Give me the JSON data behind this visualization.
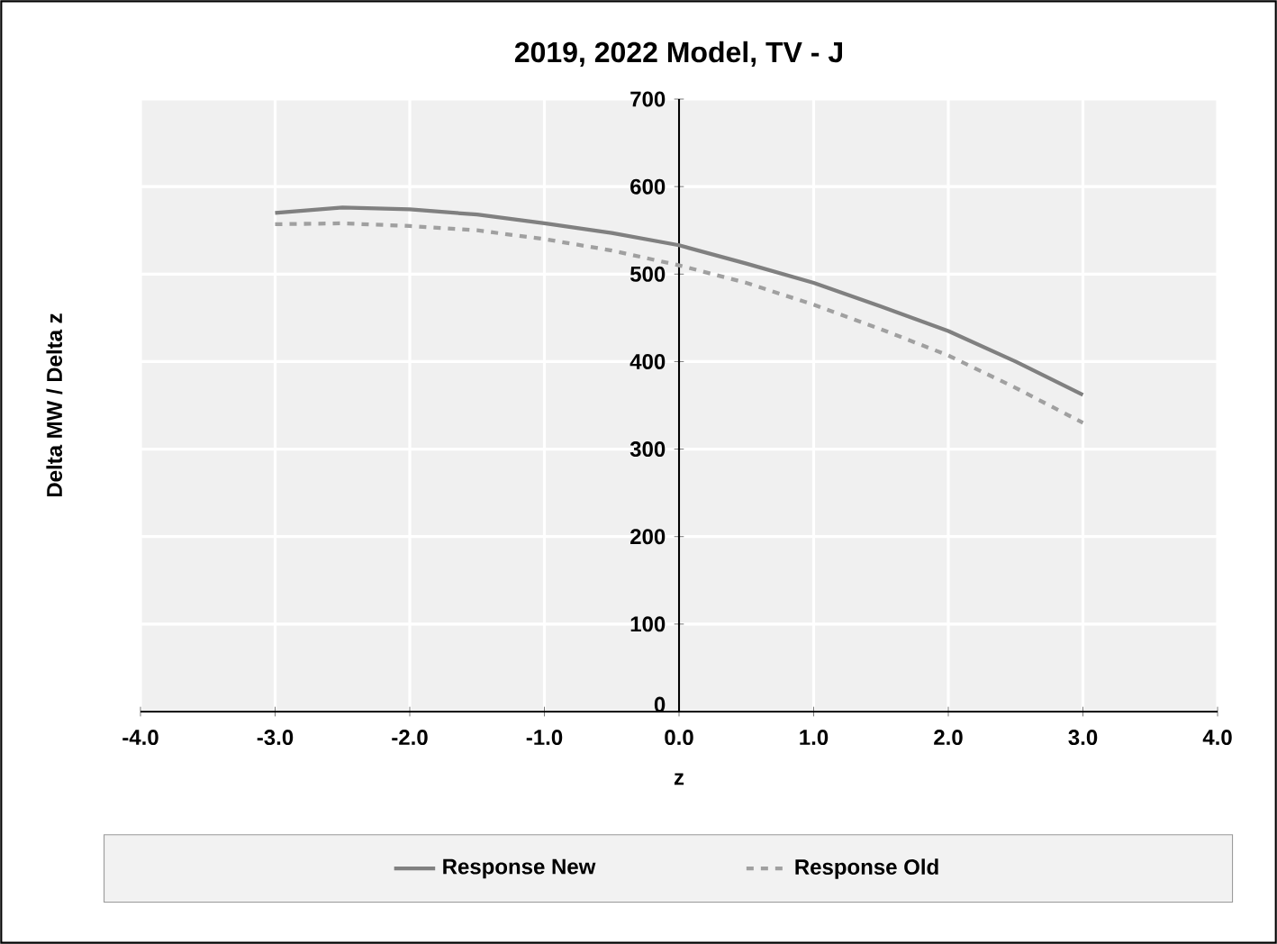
{
  "chart_data": {
    "type": "line",
    "title": "2019, 2022 Model, TV - J",
    "xlabel": "z",
    "ylabel": "Delta MW / Delta z",
    "x": [
      -3,
      -2.5,
      -2,
      -1.5,
      -1,
      -0.5,
      0,
      0.5,
      1,
      1.5,
      2,
      2.5,
      3
    ],
    "series": [
      {
        "name": "Response New",
        "color": "#808080",
        "line_style": "solid",
        "values": [
          570,
          576,
          574,
          568,
          558,
          547,
          533,
          512,
          490,
          463,
          435,
          400,
          362
        ]
      },
      {
        "name": "Response Old",
        "color": "#a0a0a0",
        "line_style": "dashed",
        "values": [
          557,
          558,
          555,
          550,
          540,
          527,
          510,
          490,
          465,
          437,
          407,
          370,
          330
        ]
      }
    ],
    "xlim": [
      -4,
      4
    ],
    "ylim": [
      0,
      700
    ],
    "xticks": [
      {
        "value": -4,
        "label": "-4.0"
      },
      {
        "value": -3,
        "label": "-3.0"
      },
      {
        "value": -2,
        "label": "-2.0"
      },
      {
        "value": -1,
        "label": "-1.0"
      },
      {
        "value": 0,
        "label": "0.0"
      },
      {
        "value": 1,
        "label": "1.0"
      },
      {
        "value": 2,
        "label": "2.0"
      },
      {
        "value": 3,
        "label": "3.0"
      },
      {
        "value": 4,
        "label": "4.0"
      }
    ],
    "yticks": [
      0,
      100,
      200,
      300,
      400,
      500,
      600,
      700
    ],
    "grid": true,
    "legend": "bottom",
    "marker": "none"
  }
}
